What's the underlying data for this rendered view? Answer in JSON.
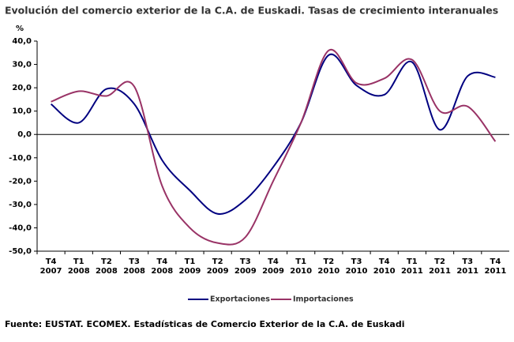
{
  "chart_data": {
    "type": "line",
    "title": "Evolución del comercio exterior de la C.A. de Euskadi. Tasas de crecimiento interanuales",
    "y_label": "%",
    "source": "Fuente: EUSTAT. ECOMEX. Estadísticas de Comercio Exterior de la C.A. de Euskadi",
    "categories": [
      "T4 2007",
      "T1 2008",
      "T2 2008",
      "T3 2008",
      "T4 2008",
      "T1 2009",
      "T2 2009",
      "T3 2009",
      "T4 2009",
      "T1 2010",
      "T2 2010",
      "T3 2010",
      "T4 2010",
      "T1 2011",
      "T2 2011",
      "T3 2011",
      "T4 2011"
    ],
    "series": [
      {
        "name": "Exportaciones",
        "color": "#000080",
        "values": [
          13,
          5,
          19.5,
          13,
          -11,
          -24,
          -34,
          -28,
          -14,
          5,
          34,
          21,
          17,
          31,
          2,
          25,
          24.5
        ]
      },
      {
        "name": "Importaciones",
        "color": "#993366",
        "values": [
          14,
          18.5,
          16.5,
          20.5,
          -22,
          -40,
          -46.5,
          -44,
          -20,
          5,
          36,
          22,
          24,
          32,
          10,
          12,
          -3
        ]
      }
    ],
    "ylim": [
      -50,
      40
    ],
    "yticks": [
      {
        "value": -50,
        "label": "-50,0"
      },
      {
        "value": -40,
        "label": "-40,0"
      },
      {
        "value": -30,
        "label": "-30,0"
      },
      {
        "value": -20,
        "label": "-20,0"
      },
      {
        "value": -10,
        "label": "-10,0"
      },
      {
        "value": 0,
        "label": "0,0"
      },
      {
        "value": 10,
        "label": "10,0"
      },
      {
        "value": 20,
        "label": "20,0"
      },
      {
        "value": 30,
        "label": "30,0"
      },
      {
        "value": 40,
        "label": "40,0"
      }
    ],
    "legend": "bottom"
  }
}
